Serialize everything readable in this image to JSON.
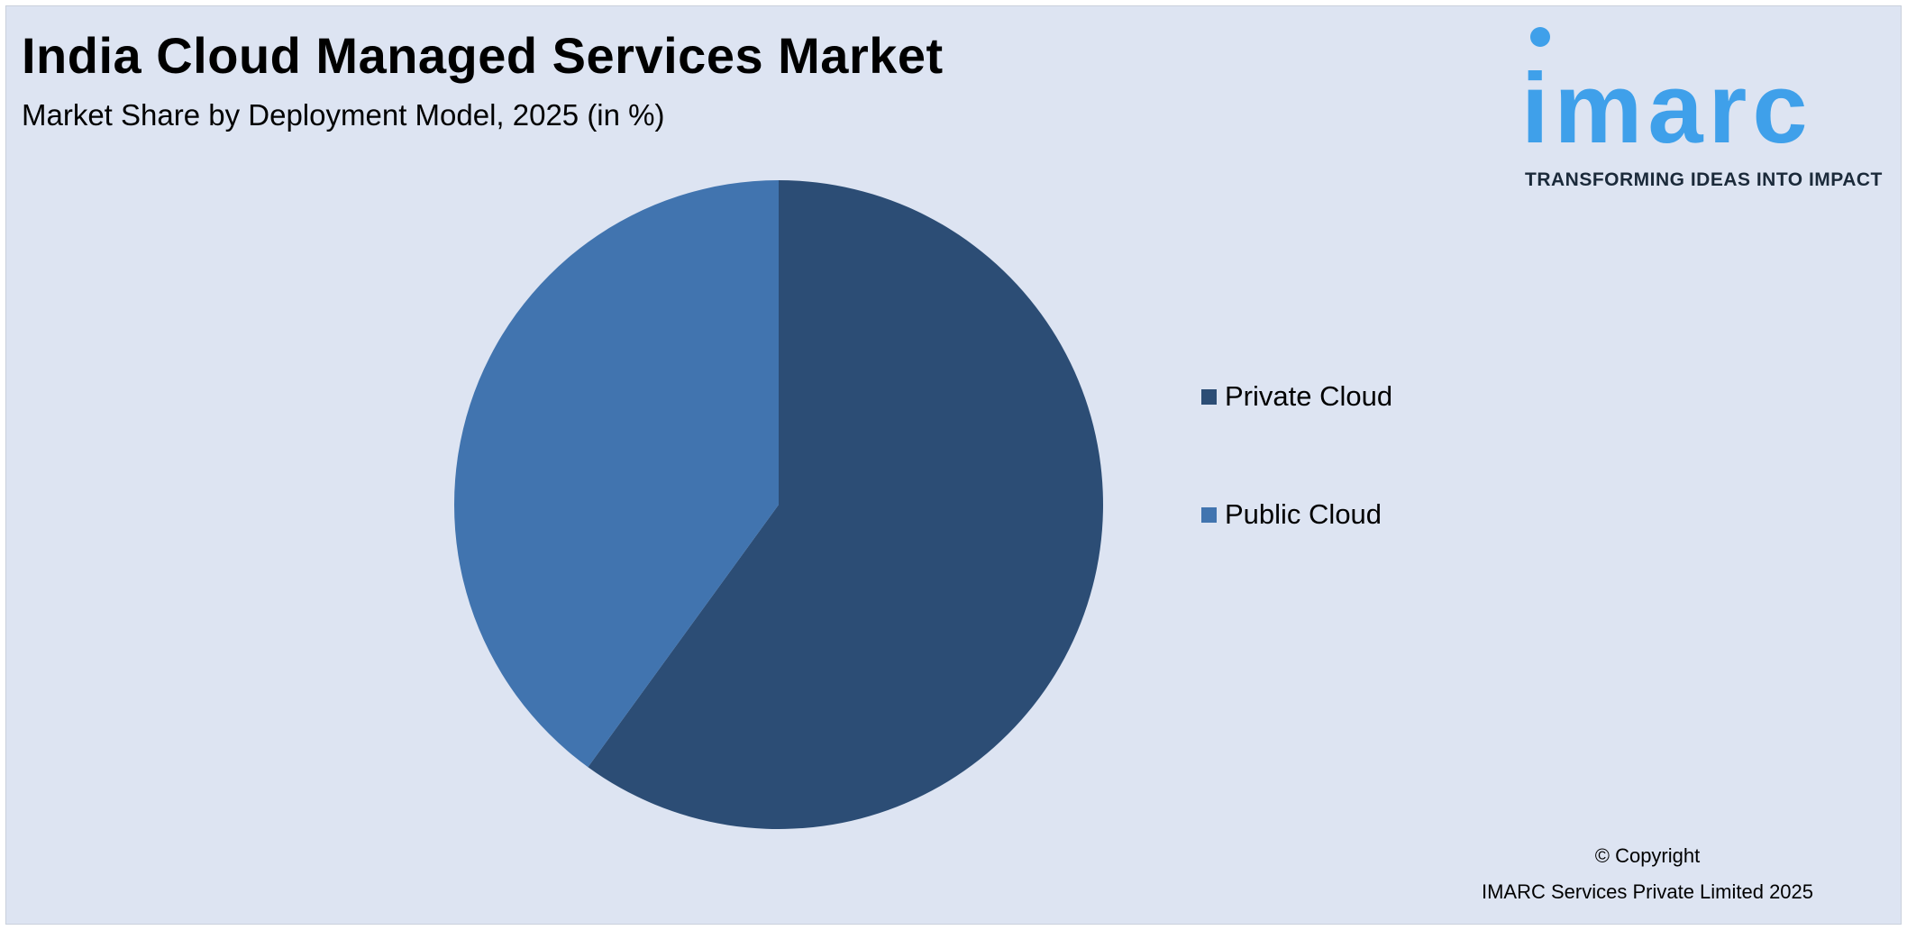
{
  "header": {
    "title": "India Cloud Managed Services Market",
    "subtitle": "Market Share by Deployment Model, 2025 (in %)"
  },
  "logo": {
    "text": "imarc",
    "tagline": "TRANSFORMING IDEAS INTO IMPACT",
    "color": "#3fa0ea"
  },
  "chart_data": {
    "type": "pie",
    "title": "India Cloud Managed Services Market",
    "subtitle": "Market Share by Deployment Model, 2025 (in %)",
    "categories": [
      "Private Cloud",
      "Public Cloud"
    ],
    "values": [
      60,
      40
    ],
    "colors": [
      "#2c4d75",
      "#4174af"
    ],
    "legend_position": "right",
    "start_angle": "top, clockwise"
  },
  "footer": {
    "copyright_line1": "© Copyright",
    "copyright_line2": "IMARC Services Private Limited 2025"
  }
}
